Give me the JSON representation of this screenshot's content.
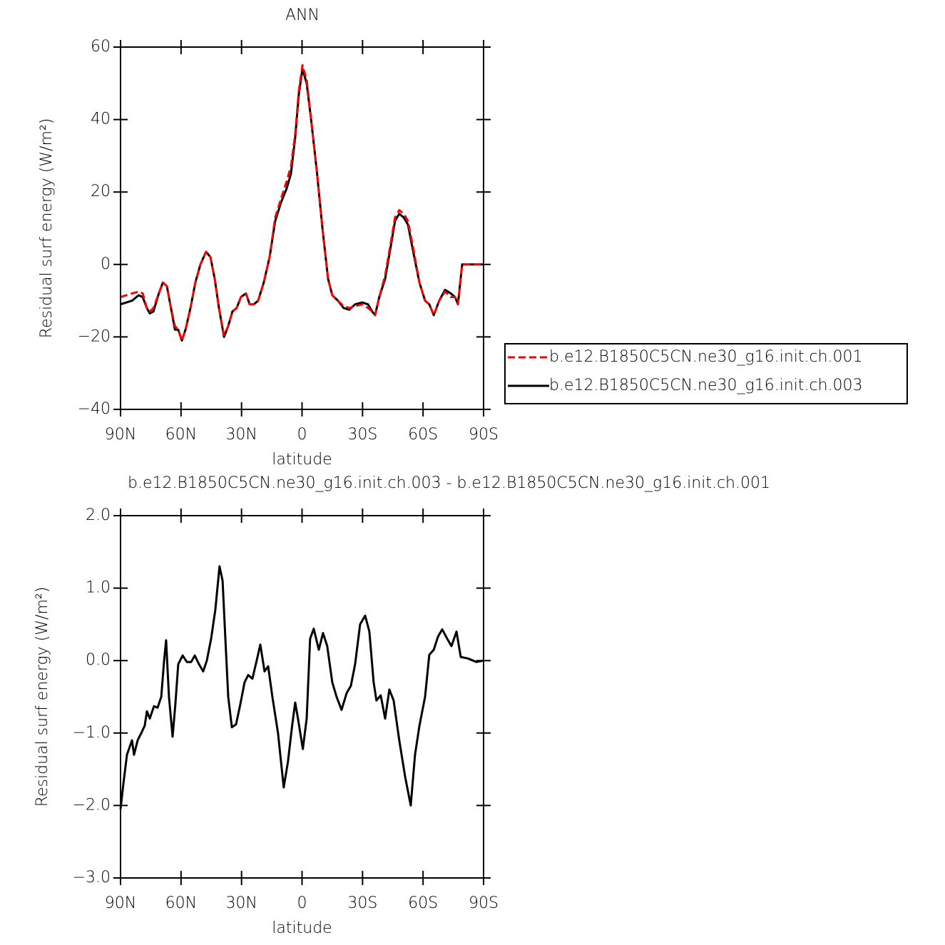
{
  "chart_data": [
    {
      "type": "line",
      "title": "ANN",
      "xlabel": "latitude",
      "ylabel": "Residual surf energy (W/m²)",
      "x": [
        90,
        84.3,
        81,
        79,
        77,
        75.5,
        73.7,
        71,
        69,
        67,
        65,
        63,
        61.4,
        59.6,
        57.8,
        55.3,
        52.9,
        50.4,
        47.6,
        45.4,
        43.3,
        41.2,
        38.7,
        36.6,
        34.5,
        32.4,
        30.3,
        27.8,
        26,
        23.9,
        21.8,
        19,
        16.1,
        13.3,
        10.5,
        7.6,
        5.5,
        3.4,
        1.6,
        -0.2,
        -2.3,
        -4.5,
        -7.3,
        -10.1,
        -12.9,
        -15,
        -17.8,
        -20.6,
        -23.4,
        -26.3,
        -29.8,
        -32.7,
        -34.8,
        -36.2,
        -38.3,
        -41.2,
        -44,
        -46.1,
        -48.2,
        -50.4,
        -52.5,
        -55.3,
        -58.2,
        -61,
        -63.1,
        -65.3,
        -68,
        -70.9,
        -73.7,
        -75.9,
        -77.3,
        -79.4,
        -83.6,
        -90
      ],
      "series": [
        {
          "name": "b.e12.B1850C5CN.ne30_g16.init.ch.001",
          "color": "#ff0000",
          "linestyle": "dashed",
          "values": [
            -9,
            -8,
            -7.5,
            -8,
            -12,
            -13,
            -12,
            -8,
            -5,
            -6,
            -12,
            -17,
            -18,
            -21,
            -18,
            -12,
            -5,
            0,
            3.5,
            2,
            -4,
            -12,
            -19.5,
            -17,
            -13,
            -12,
            -9,
            -8,
            -11,
            -11,
            -10,
            -5,
            2,
            13,
            18,
            23,
            27,
            36,
            48,
            55,
            51,
            40,
            26,
            10,
            -4,
            -8.5,
            -10,
            -11.5,
            -12,
            -11.5,
            -11,
            -12,
            -13,
            -14,
            -9,
            -3,
            6,
            13,
            15,
            14,
            12,
            4,
            -5,
            -10,
            -11,
            -14,
            -10,
            -7.5,
            -9,
            -9,
            -11,
            0,
            0,
            0
          ]
        },
        {
          "name": "b.e12.B1850C5CN.ne30_g16.init.ch.003",
          "color": "#000000",
          "linestyle": "solid",
          "values": [
            -11,
            -10,
            -8.5,
            -9,
            -12,
            -13.5,
            -13,
            -8,
            -5,
            -6,
            -12,
            -18,
            -18,
            -21,
            -18,
            -12,
            -5,
            0,
            3.5,
            2,
            -4,
            -12,
            -20,
            -17,
            -13,
            -12,
            -9,
            -8,
            -11,
            -11,
            -10,
            -5,
            2,
            12,
            17,
            21,
            25,
            35,
            47,
            54,
            50,
            40,
            26,
            10,
            -4,
            -8.5,
            -10,
            -12,
            -12.5,
            -11,
            -10.5,
            -11,
            -13,
            -14,
            -9,
            -4,
            5,
            12,
            14,
            13,
            11,
            3,
            -5,
            -10,
            -11,
            -14,
            -10,
            -7,
            -8,
            -9,
            -11,
            0,
            0,
            0
          ]
        }
      ],
      "xlim": [
        90,
        -90
      ],
      "xticks": [
        {
          "value": 90,
          "label": "90N"
        },
        {
          "value": 60,
          "label": "60N"
        },
        {
          "value": 30,
          "label": "30N"
        },
        0,
        {
          "value": -30,
          "label": "30S"
        },
        {
          "value": -60,
          "label": "60S"
        },
        {
          "value": -90,
          "label": "90S"
        }
      ],
      "ylim": [
        -40,
        60
      ],
      "yticks": [
        {
          "value": -40,
          "label": "−40"
        },
        {
          "value": -20,
          "label": "−20"
        },
        0,
        20,
        40,
        60
      ],
      "legend": "right"
    },
    {
      "type": "line",
      "title": "b.e12.B1850C5CN.ne30_g16.init.ch.003 - b.e12.B1850C5CN.ne30_g16.init.ch.001",
      "xlabel": "latitude",
      "ylabel": "Residual surf energy (W/m²)",
      "x": [
        90,
        88.6,
        86.8,
        84.3,
        83.3,
        81.5,
        79.7,
        78,
        76.9,
        75.5,
        73.4,
        71.6,
        69.8,
        68.4,
        67.4,
        66,
        64.2,
        62.8,
        61.4,
        59.2,
        57.1,
        55,
        53.2,
        51.1,
        49,
        47.2,
        45.1,
        43,
        40.9,
        39.4,
        38,
        36.6,
        34.8,
        32.7,
        30.6,
        28.5,
        26.7,
        24.6,
        22.5,
        20.7,
        18.6,
        16.8,
        14.7,
        11.9,
        9.1,
        7,
        4.9,
        3.4,
        2,
        -0.4,
        -2.3,
        -4,
        -5.8,
        -8.3,
        -10.4,
        -12.5,
        -15,
        -17.1,
        -19.6,
        -22.1,
        -24.2,
        -26.3,
        -28.8,
        -31.3,
        -33.4,
        -35.5,
        -36.9,
        -39,
        -41.2,
        -43.3,
        -45.4,
        -48.2,
        -51.1,
        -53.9,
        -56,
        -58.2,
        -61,
        -63.1,
        -65.3,
        -67.4,
        -69.5,
        -72,
        -74.1,
        -76.6,
        -78.7,
        -82.2,
        -86.5,
        -90
      ],
      "values": [
        -2.05,
        -1.7,
        -1.3,
        -1.1,
        -1.3,
        -1.1,
        -1.0,
        -0.9,
        -0.7,
        -0.8,
        -0.63,
        -0.65,
        -0.5,
        0.0,
        0.28,
        -0.5,
        -1.05,
        -0.6,
        -0.05,
        0.07,
        -0.02,
        -0.02,
        0.07,
        -0.05,
        -0.15,
        0.0,
        0.3,
        0.7,
        1.3,
        1.1,
        0.3,
        -0.5,
        -0.92,
        -0.88,
        -0.6,
        -0.3,
        -0.2,
        -0.25,
        0.0,
        0.22,
        -0.15,
        -0.08,
        -0.5,
        -1.0,
        -1.75,
        -1.4,
        -0.9,
        -0.58,
        -0.8,
        -1.22,
        -0.8,
        0.3,
        0.44,
        0.15,
        0.38,
        0.2,
        -0.3,
        -0.5,
        -0.68,
        -0.45,
        -0.35,
        -0.05,
        0.5,
        0.62,
        0.4,
        -0.3,
        -0.55,
        -0.48,
        -0.8,
        -0.4,
        -0.55,
        -1.1,
        -1.6,
        -2.0,
        -1.3,
        -0.9,
        -0.5,
        0.08,
        0.15,
        0.33,
        0.43,
        0.3,
        0.2,
        0.4,
        0.05,
        0.03,
        -0.02,
        0.0
      ],
      "color": "#000000",
      "xlim": [
        90,
        -90
      ],
      "xticks": [
        {
          "value": 90,
          "label": "90N"
        },
        {
          "value": 60,
          "label": "60N"
        },
        {
          "value": 30,
          "label": "30N"
        },
        0,
        {
          "value": -30,
          "label": "30S"
        },
        {
          "value": -60,
          "label": "60S"
        },
        {
          "value": -90,
          "label": "90S"
        }
      ],
      "ylim": [
        -3,
        2
      ],
      "yticks": [
        {
          "value": -3,
          "label": "−3.0"
        },
        {
          "value": -2,
          "label": "−2.0"
        },
        {
          "value": -1,
          "label": "−1.0"
        },
        {
          "value": 0,
          "label": "0.0"
        },
        {
          "value": 1,
          "label": "1.0"
        },
        {
          "value": 2,
          "label": "2.0"
        }
      ]
    }
  ]
}
